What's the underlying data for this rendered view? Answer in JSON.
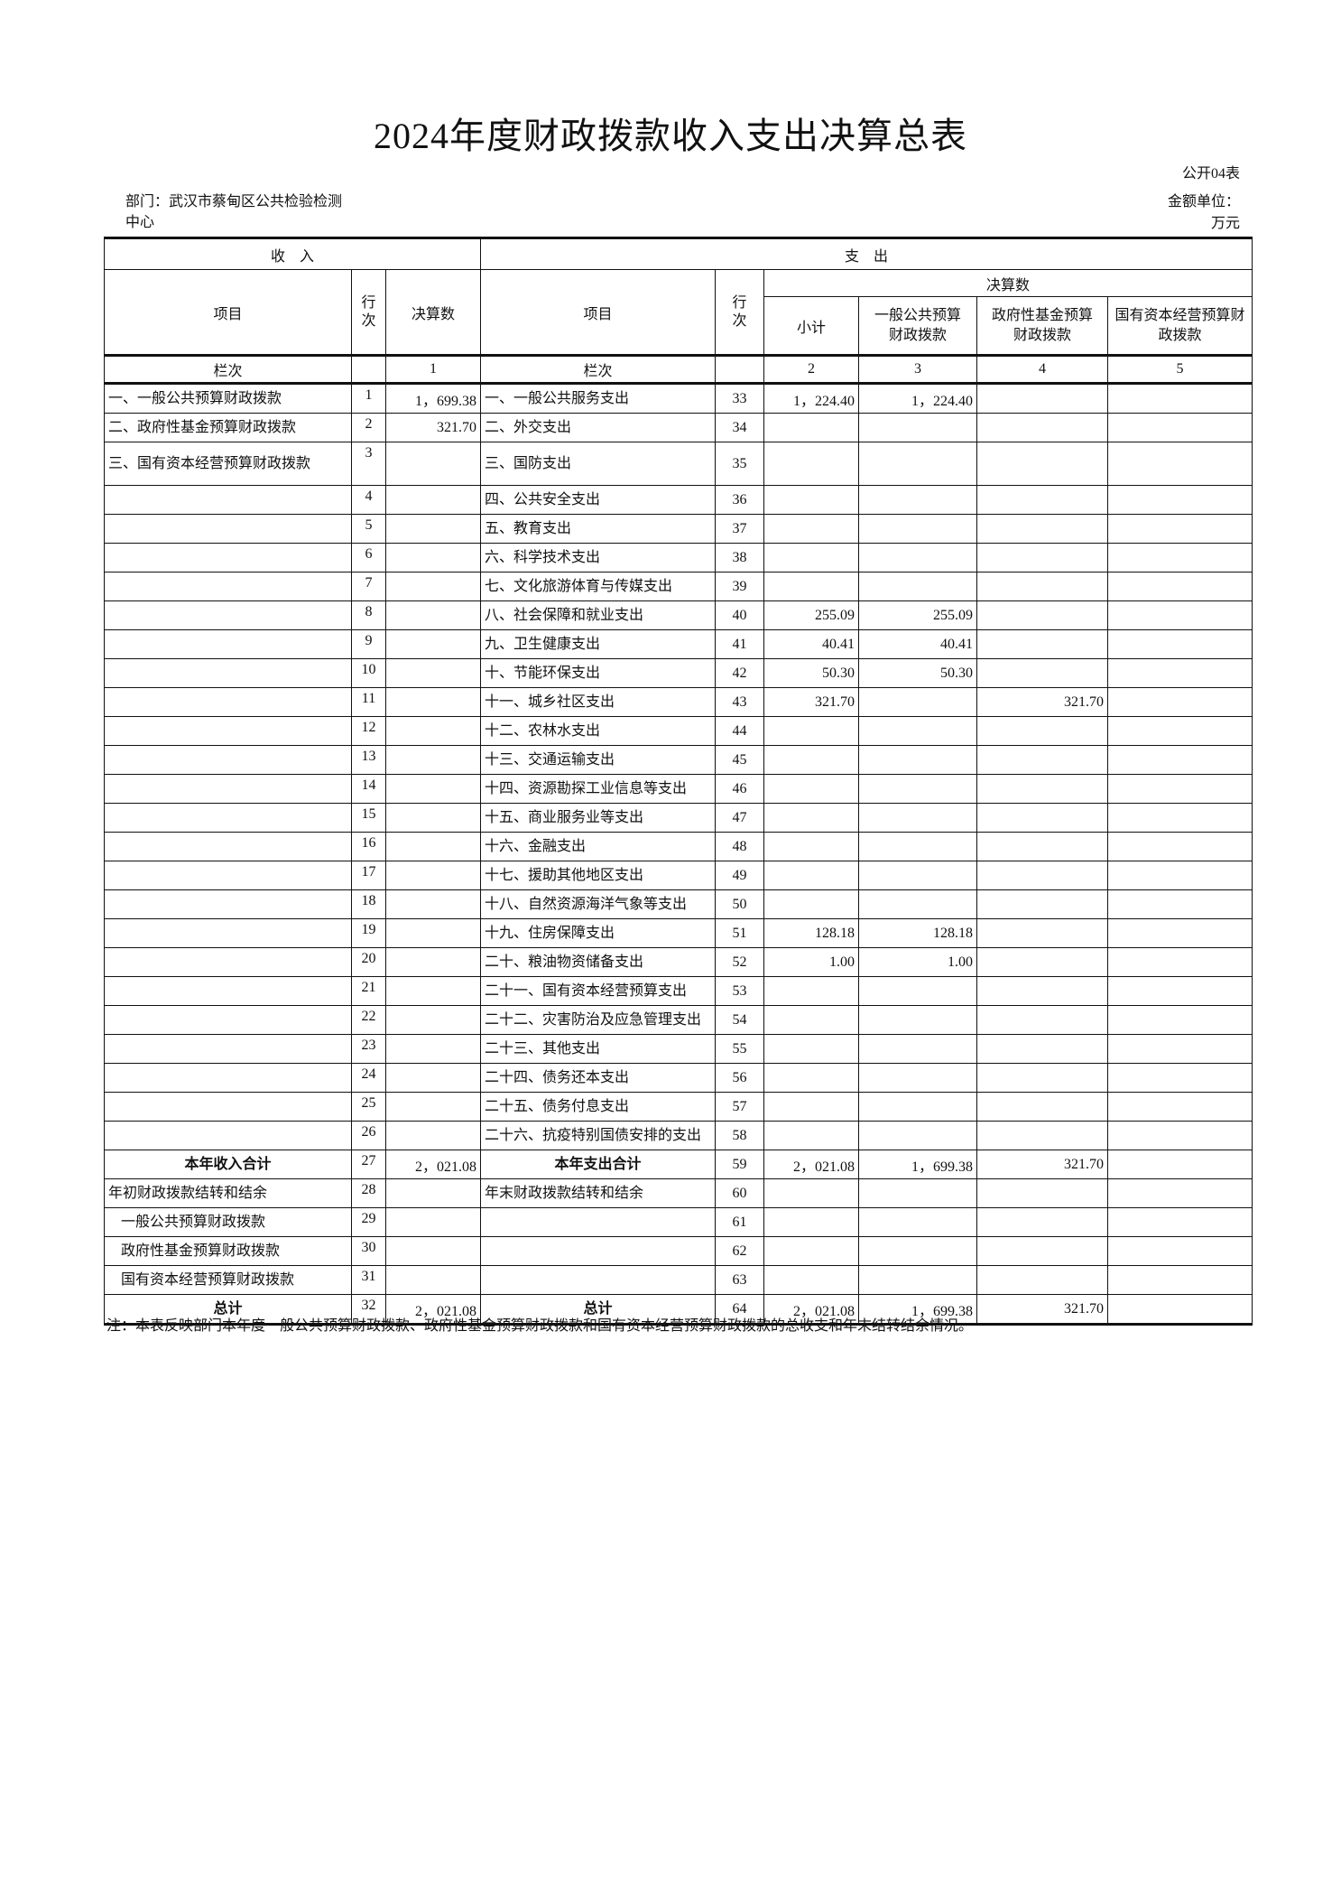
{
  "title": "2024年度财政拨款收入支出决算总表",
  "form_code": "公开04表",
  "department_label": "部门：武汉市蔡甸区公共检验检测",
  "department_label_line2": "中心",
  "unit_label": "金额单位：",
  "unit_value": "万元",
  "header": {
    "income": "收    入",
    "expense": "支    出",
    "item": "项目",
    "line_no": "行次",
    "amount": "决算数",
    "subtotal": "小计",
    "general_budget": "一般公共预算财政拨款",
    "gov_fund": "政府性基金预算财政拨款",
    "state_capital": "国有资本经营预算财政拨款",
    "column_label": "栏次",
    "col_nums": [
      "1",
      "2",
      "3",
      "4",
      "5"
    ]
  },
  "rows": [
    {
      "in_item": "一、一般公共预算财政拨款",
      "in_no": "1",
      "in_amt": "1，699.38",
      "out_item": "一、一般公共服务支出",
      "out_no": "33",
      "sub": "1，224.40",
      "gen": "1，224.40",
      "fund": "",
      "cap": ""
    },
    {
      "in_item": "二、政府性基金预算财政拨款",
      "in_no": "2",
      "in_amt": "321.70",
      "out_item": "二、外交支出",
      "out_no": "34",
      "sub": "",
      "gen": "",
      "fund": "",
      "cap": ""
    },
    {
      "in_item": "三、国有资本经营预算财政拨款",
      "in_no": "3",
      "in_amt": "",
      "out_item": "三、国防支出",
      "out_no": "35",
      "sub": "",
      "gen": "",
      "fund": "",
      "cap": ""
    },
    {
      "in_item": "",
      "in_no": "4",
      "in_amt": "",
      "out_item": "四、公共安全支出",
      "out_no": "36",
      "sub": "",
      "gen": "",
      "fund": "",
      "cap": ""
    },
    {
      "in_item": "",
      "in_no": "5",
      "in_amt": "",
      "out_item": "五、教育支出",
      "out_no": "37",
      "sub": "",
      "gen": "",
      "fund": "",
      "cap": ""
    },
    {
      "in_item": "",
      "in_no": "6",
      "in_amt": "",
      "out_item": "六、科学技术支出",
      "out_no": "38",
      "sub": "",
      "gen": "",
      "fund": "",
      "cap": ""
    },
    {
      "in_item": "",
      "in_no": "7",
      "in_amt": "",
      "out_item": "七、文化旅游体育与传媒支出",
      "out_no": "39",
      "sub": "",
      "gen": "",
      "fund": "",
      "cap": ""
    },
    {
      "in_item": "",
      "in_no": "8",
      "in_amt": "",
      "out_item": "八、社会保障和就业支出",
      "out_no": "40",
      "sub": "255.09",
      "gen": "255.09",
      "fund": "",
      "cap": ""
    },
    {
      "in_item": "",
      "in_no": "9",
      "in_amt": "",
      "out_item": "九、卫生健康支出",
      "out_no": "41",
      "sub": "40.41",
      "gen": "40.41",
      "fund": "",
      "cap": ""
    },
    {
      "in_item": "",
      "in_no": "10",
      "in_amt": "",
      "out_item": "十、节能环保支出",
      "out_no": "42",
      "sub": "50.30",
      "gen": "50.30",
      "fund": "",
      "cap": ""
    },
    {
      "in_item": "",
      "in_no": "11",
      "in_amt": "",
      "out_item": "十一、城乡社区支出",
      "out_no": "43",
      "sub": "321.70",
      "gen": "",
      "fund": "321.70",
      "cap": ""
    },
    {
      "in_item": "",
      "in_no": "12",
      "in_amt": "",
      "out_item": "十二、农林水支出",
      "out_no": "44",
      "sub": "",
      "gen": "",
      "fund": "",
      "cap": ""
    },
    {
      "in_item": "",
      "in_no": "13",
      "in_amt": "",
      "out_item": "十三、交通运输支出",
      "out_no": "45",
      "sub": "",
      "gen": "",
      "fund": "",
      "cap": ""
    },
    {
      "in_item": "",
      "in_no": "14",
      "in_amt": "",
      "out_item": "十四、资源勘探工业信息等支出",
      "out_no": "46",
      "sub": "",
      "gen": "",
      "fund": "",
      "cap": ""
    },
    {
      "in_item": "",
      "in_no": "15",
      "in_amt": "",
      "out_item": "十五、商业服务业等支出",
      "out_no": "47",
      "sub": "",
      "gen": "",
      "fund": "",
      "cap": ""
    },
    {
      "in_item": "",
      "in_no": "16",
      "in_amt": "",
      "out_item": "十六、金融支出",
      "out_no": "48",
      "sub": "",
      "gen": "",
      "fund": "",
      "cap": ""
    },
    {
      "in_item": "",
      "in_no": "17",
      "in_amt": "",
      "out_item": "十七、援助其他地区支出",
      "out_no": "49",
      "sub": "",
      "gen": "",
      "fund": "",
      "cap": ""
    },
    {
      "in_item": "",
      "in_no": "18",
      "in_amt": "",
      "out_item": "十八、自然资源海洋气象等支出",
      "out_no": "50",
      "sub": "",
      "gen": "",
      "fund": "",
      "cap": ""
    },
    {
      "in_item": "",
      "in_no": "19",
      "in_amt": "",
      "out_item": "十九、住房保障支出",
      "out_no": "51",
      "sub": "128.18",
      "gen": "128.18",
      "fund": "",
      "cap": ""
    },
    {
      "in_item": "",
      "in_no": "20",
      "in_amt": "",
      "out_item": "二十、粮油物资储备支出",
      "out_no": "52",
      "sub": "1.00",
      "gen": "1.00",
      "fund": "",
      "cap": ""
    },
    {
      "in_item": "",
      "in_no": "21",
      "in_amt": "",
      "out_item": "二十一、国有资本经营预算支出",
      "out_no": "53",
      "sub": "",
      "gen": "",
      "fund": "",
      "cap": ""
    },
    {
      "in_item": "",
      "in_no": "22",
      "in_amt": "",
      "out_item": "二十二、灾害防治及应急管理支出",
      "out_no": "54",
      "sub": "",
      "gen": "",
      "fund": "",
      "cap": ""
    },
    {
      "in_item": "",
      "in_no": "23",
      "in_amt": "",
      "out_item": "二十三、其他支出",
      "out_no": "55",
      "sub": "",
      "gen": "",
      "fund": "",
      "cap": ""
    },
    {
      "in_item": "",
      "in_no": "24",
      "in_amt": "",
      "out_item": "二十四、债务还本支出",
      "out_no": "56",
      "sub": "",
      "gen": "",
      "fund": "",
      "cap": ""
    },
    {
      "in_item": "",
      "in_no": "25",
      "in_amt": "",
      "out_item": "二十五、债务付息支出",
      "out_no": "57",
      "sub": "",
      "gen": "",
      "fund": "",
      "cap": ""
    },
    {
      "in_item": "",
      "in_no": "26",
      "in_amt": "",
      "out_item": "二十六、抗疫特别国债安排的支出",
      "out_no": "58",
      "sub": "",
      "gen": "",
      "fund": "",
      "cap": ""
    },
    {
      "in_item": "本年收入合计",
      "in_no": "27",
      "in_amt": "2，021.08",
      "out_item": "本年支出合计",
      "out_no": "59",
      "sub": "2，021.08",
      "gen": "1，699.38",
      "fund": "321.70",
      "cap": "",
      "bold": true
    },
    {
      "in_item": "年初财政拨款结转和结余",
      "in_no": "28",
      "in_amt": "",
      "out_item": "年末财政拨款结转和结余",
      "out_no": "60",
      "sub": "",
      "gen": "",
      "fund": "",
      "cap": ""
    },
    {
      "in_item": "一般公共预算财政拨款",
      "in_no": "29",
      "in_amt": "",
      "out_item": "",
      "out_no": "61",
      "sub": "",
      "gen": "",
      "fund": "",
      "cap": "",
      "indent": true
    },
    {
      "in_item": "政府性基金预算财政拨款",
      "in_no": "30",
      "in_amt": "",
      "out_item": "",
      "out_no": "62",
      "sub": "",
      "gen": "",
      "fund": "",
      "cap": "",
      "indent": true
    },
    {
      "in_item": "国有资本经营预算财政拨款",
      "in_no": "31",
      "in_amt": "",
      "out_item": "",
      "out_no": "63",
      "sub": "",
      "gen": "",
      "fund": "",
      "cap": "",
      "indent": true
    },
    {
      "in_item": "总计",
      "in_no": "32",
      "in_amt": "2，021.08",
      "out_item": "总计",
      "out_no": "64",
      "sub": "2，021.08",
      "gen": "1，699.38",
      "fund": "321.70",
      "cap": "",
      "bold": true
    }
  ],
  "note": "注：本表反映部门本年度一般公共预算财政拨款、政府性基金预算财政拨款和国有资本经营预算财政拨款的总收支和年末结转结余情况。"
}
